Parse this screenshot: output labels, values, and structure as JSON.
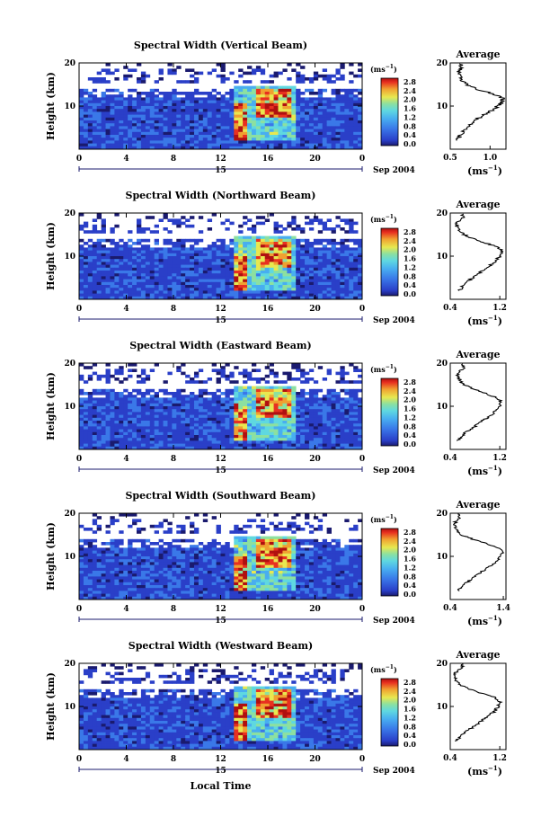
{
  "figure": {
    "ylabel": "Height (km)",
    "xlabel_bottom": "Local Time",
    "date_day": "15",
    "date_tail": "Sep 2004",
    "cbar_unit": "(ms",
    "cbar_unit_exp": "−1",
    "cbar_unit_close": ")",
    "cbar_ticks": [
      "0.0",
      "0.4",
      "0.8",
      "1.2",
      "1.6",
      "2.0",
      "2.4",
      "2.8"
    ],
    "avg_title": "Average",
    "avg_xunit": "(ms",
    "avg_xunit_exp": "−1",
    "avg_xunit_close": ")"
  },
  "colors": {
    "colormap": [
      "#1a1a6e",
      "#2a3fc8",
      "#3a78e8",
      "#48aef0",
      "#5fd8e0",
      "#8ce0a0",
      "#e8e850",
      "#f0a030",
      "#e83020",
      "#b01010"
    ]
  },
  "chart_data": [
    {
      "type": "heatmap",
      "title": "Spectral Width (Vertical Beam)",
      "x_range": [
        0,
        24
      ],
      "x_ticks": [
        "0",
        "4",
        "8",
        "12",
        "16",
        "20",
        "0"
      ],
      "y_range": [
        0,
        20
      ],
      "y_ticks": [
        "10",
        "20"
      ],
      "colorbar_range": [
        0.0,
        2.8
      ],
      "description_values": "background ~0.3-0.6 ms^-1 below 12 km; convective burst 13-18 LT up to ~2.8 ms^-1 at 6-14 km",
      "average_profile": {
        "title": "Average",
        "x_ticks": [
          "0.5",
          "1.0"
        ],
        "x_range": [
          0.5,
          1.2
        ],
        "height_km": [
          2,
          3,
          4,
          5,
          6,
          7,
          8,
          9,
          10,
          11,
          12,
          13,
          14,
          15,
          16,
          17,
          18,
          19,
          20
        ],
        "width_ms": [
          0.58,
          0.62,
          0.66,
          0.7,
          0.76,
          0.84,
          0.93,
          1.02,
          1.1,
          1.16,
          1.15,
          1.0,
          0.82,
          0.7,
          0.65,
          0.62,
          0.6,
          0.64,
          0.62
        ]
      }
    },
    {
      "type": "heatmap",
      "title": "Spectral Width (Northward Beam)",
      "x_range": [
        0,
        24
      ],
      "x_ticks": [
        "0",
        "4",
        "8",
        "12",
        "16",
        "20",
        "0"
      ],
      "y_range": [
        0,
        20
      ],
      "y_ticks": [
        "10",
        "20"
      ],
      "colorbar_range": [
        0.0,
        2.8
      ],
      "average_profile": {
        "title": "Average",
        "x_ticks": [
          "0.4",
          "1.2"
        ],
        "x_range": [
          0.4,
          1.3
        ],
        "height_km": [
          2,
          3,
          4,
          5,
          6,
          7,
          8,
          9,
          10,
          11,
          12,
          13,
          14,
          15,
          16,
          17,
          18,
          19,
          20
        ],
        "width_ms": [
          0.55,
          0.6,
          0.68,
          0.76,
          0.86,
          0.96,
          1.06,
          1.14,
          1.2,
          1.24,
          1.18,
          0.98,
          0.78,
          0.62,
          0.55,
          0.5,
          0.52,
          0.6,
          0.58
        ]
      }
    },
    {
      "type": "heatmap",
      "title": "Spectral Width (Eastward Beam)",
      "x_range": [
        0,
        24
      ],
      "x_ticks": [
        "0",
        "4",
        "8",
        "12",
        "16",
        "20",
        "0"
      ],
      "y_range": [
        0,
        20
      ],
      "y_ticks": [
        "10",
        "20"
      ],
      "colorbar_range": [
        0.0,
        2.8
      ],
      "average_profile": {
        "title": "Average",
        "x_ticks": [
          "0.4",
          "1.2"
        ],
        "x_range": [
          0.4,
          1.3
        ],
        "height_km": [
          2,
          3,
          4,
          5,
          6,
          7,
          8,
          9,
          10,
          11,
          12,
          13,
          14,
          15,
          16,
          17,
          18,
          19,
          20
        ],
        "width_ms": [
          0.52,
          0.58,
          0.66,
          0.76,
          0.86,
          0.96,
          1.06,
          1.14,
          1.2,
          1.22,
          1.16,
          0.96,
          0.78,
          0.62,
          0.56,
          0.52,
          0.55,
          0.62,
          0.6
        ]
      }
    },
    {
      "type": "heatmap",
      "title": "Spectral Width (Southward Beam)",
      "x_range": [
        0,
        24
      ],
      "x_ticks": [
        "0",
        "4",
        "8",
        "12",
        "16",
        "20",
        "0"
      ],
      "y_range": [
        0,
        20
      ],
      "y_ticks": [
        "10",
        "20"
      ],
      "colorbar_range": [
        0.0,
        2.8
      ],
      "average_profile": {
        "title": "Average",
        "x_ticks": [
          "0.4",
          "1.4"
        ],
        "x_range": [
          0.4,
          1.45
        ],
        "height_km": [
          2,
          3,
          4,
          5,
          6,
          7,
          8,
          9,
          10,
          11,
          12,
          13,
          14,
          15,
          16,
          17,
          18,
          19,
          20
        ],
        "width_ms": [
          0.55,
          0.62,
          0.72,
          0.82,
          0.94,
          1.06,
          1.18,
          1.28,
          1.34,
          1.38,
          1.3,
          1.08,
          0.82,
          0.6,
          0.52,
          0.48,
          0.5,
          0.58,
          0.56
        ]
      }
    },
    {
      "type": "heatmap",
      "title": "Spectral Width (Westward Beam)",
      "x_range": [
        0,
        24
      ],
      "x_ticks": [
        "0",
        "4",
        "8",
        "12",
        "16",
        "20",
        "0"
      ],
      "y_range": [
        0,
        20
      ],
      "y_ticks": [
        "10",
        "20"
      ],
      "colorbar_range": [
        0.0,
        2.8
      ],
      "average_profile": {
        "title": "Average",
        "x_ticks": [
          "0.4",
          "1.2"
        ],
        "x_range": [
          0.4,
          1.3
        ],
        "height_km": [
          2,
          3,
          4,
          5,
          6,
          7,
          8,
          9,
          10,
          11,
          12,
          13,
          14,
          15,
          16,
          17,
          18,
          19,
          20
        ],
        "width_ms": [
          0.5,
          0.56,
          0.64,
          0.74,
          0.84,
          0.94,
          1.04,
          1.12,
          1.18,
          1.2,
          1.14,
          0.92,
          0.72,
          0.56,
          0.5,
          0.46,
          0.5,
          0.6,
          0.58
        ]
      }
    }
  ]
}
